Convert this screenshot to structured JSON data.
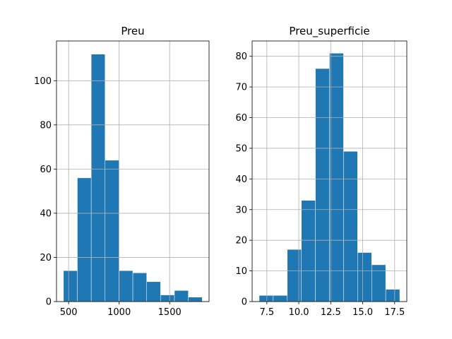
{
  "chart_data": [
    {
      "type": "bar",
      "title": "Preu",
      "bin_edges": [
        449,
        586.3,
        723.6,
        860.9,
        998.2,
        1135.5,
        1272.8,
        1410.1,
        1547.4,
        1684.7,
        1822
      ],
      "values": [
        14,
        56,
        112,
        64,
        14,
        13,
        9,
        3,
        5,
        2
      ],
      "xlim": [
        380,
        1890
      ],
      "ylim": [
        0,
        118
      ],
      "xticks": [
        "500",
        "1000",
        "1500"
      ],
      "xtick_values": [
        500,
        1000,
        1500
      ],
      "yticks": [
        "0",
        "20",
        "40",
        "60",
        "80",
        "100"
      ],
      "ytick_values": [
        0,
        20,
        40,
        60,
        80,
        100
      ],
      "color": "#1f77b4",
      "grid": true
    },
    {
      "type": "bar",
      "title": "Preu_superficie",
      "bin_edges": [
        6.9,
        8.0,
        9.1,
        10.2,
        11.3,
        12.4,
        13.5,
        14.6,
        15.7,
        16.8,
        17.9
      ],
      "values": [
        2,
        2,
        17,
        33,
        76,
        81,
        49,
        16,
        12,
        4
      ],
      "xlim": [
        6.35,
        18.45
      ],
      "ylim": [
        0,
        85
      ],
      "xticks": [
        "7.5",
        "10.0",
        "12.5",
        "15.0",
        "17.5"
      ],
      "xtick_values": [
        7.5,
        10.0,
        12.5,
        15.0,
        17.5
      ],
      "yticks": [
        "0",
        "10",
        "20",
        "30",
        "40",
        "50",
        "60",
        "70",
        "80"
      ],
      "ytick_values": [
        0,
        10,
        20,
        30,
        40,
        50,
        60,
        70,
        80
      ],
      "color": "#1f77b4",
      "grid": true
    }
  ]
}
